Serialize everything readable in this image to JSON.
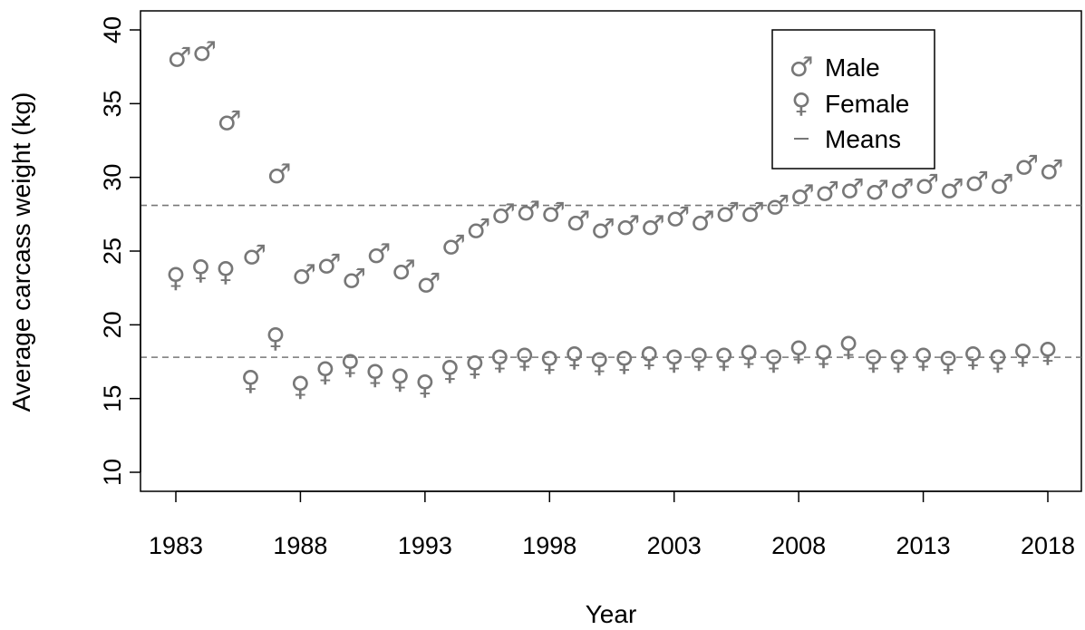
{
  "chart_data": {
    "type": "scatter",
    "xlabel": "Year",
    "ylabel": "Average carcass weight (kg)",
    "xlim": [
      1983,
      2018
    ],
    "ylim": [
      10,
      40
    ],
    "x_ticks": [
      1983,
      1988,
      1993,
      1998,
      2003,
      2008,
      2013,
      2018
    ],
    "y_ticks": [
      10,
      15,
      20,
      25,
      30,
      35,
      40
    ],
    "legend_position": "top-right",
    "x": [
      1983,
      1984,
      1985,
      1986,
      1987,
      1988,
      1989,
      1990,
      1991,
      1992,
      1993,
      1994,
      1995,
      1996,
      1997,
      1998,
      1999,
      2000,
      2001,
      2002,
      2003,
      2004,
      2005,
      2006,
      2007,
      2008,
      2009,
      2010,
      2011,
      2012,
      2013,
      2014,
      2015,
      2016,
      2017,
      2018
    ],
    "series": [
      {
        "name": "Male",
        "symbol": "♂",
        "color": "#777777",
        "values": [
          37.5,
          37.9,
          33.2,
          24.1,
          29.6,
          22.8,
          23.5,
          22.5,
          24.2,
          23.1,
          22.2,
          24.8,
          25.9,
          26.9,
          27.1,
          27.0,
          26.4,
          25.9,
          26.1,
          26.1,
          26.7,
          26.4,
          27.0,
          27.0,
          27.5,
          28.2,
          28.4,
          28.6,
          28.5,
          28.6,
          28.9,
          28.6,
          29.1,
          28.9,
          30.2,
          29.9
        ]
      },
      {
        "name": "Female",
        "symbol": "♀",
        "color": "#777777",
        "values": [
          23.2,
          23.7,
          23.6,
          16.2,
          19.1,
          15.8,
          16.8,
          17.3,
          16.6,
          16.3,
          15.9,
          16.9,
          17.2,
          17.6,
          17.7,
          17.5,
          17.8,
          17.4,
          17.5,
          17.8,
          17.6,
          17.7,
          17.7,
          17.9,
          17.6,
          18.2,
          17.9,
          18.5,
          17.6,
          17.6,
          17.7,
          17.5,
          17.8,
          17.6,
          18.0,
          18.1
        ]
      }
    ],
    "reference_lines": [
      {
        "name": "Means",
        "style": "dashed",
        "color": "#777777",
        "values": [
          28.1,
          17.8
        ]
      }
    ]
  }
}
